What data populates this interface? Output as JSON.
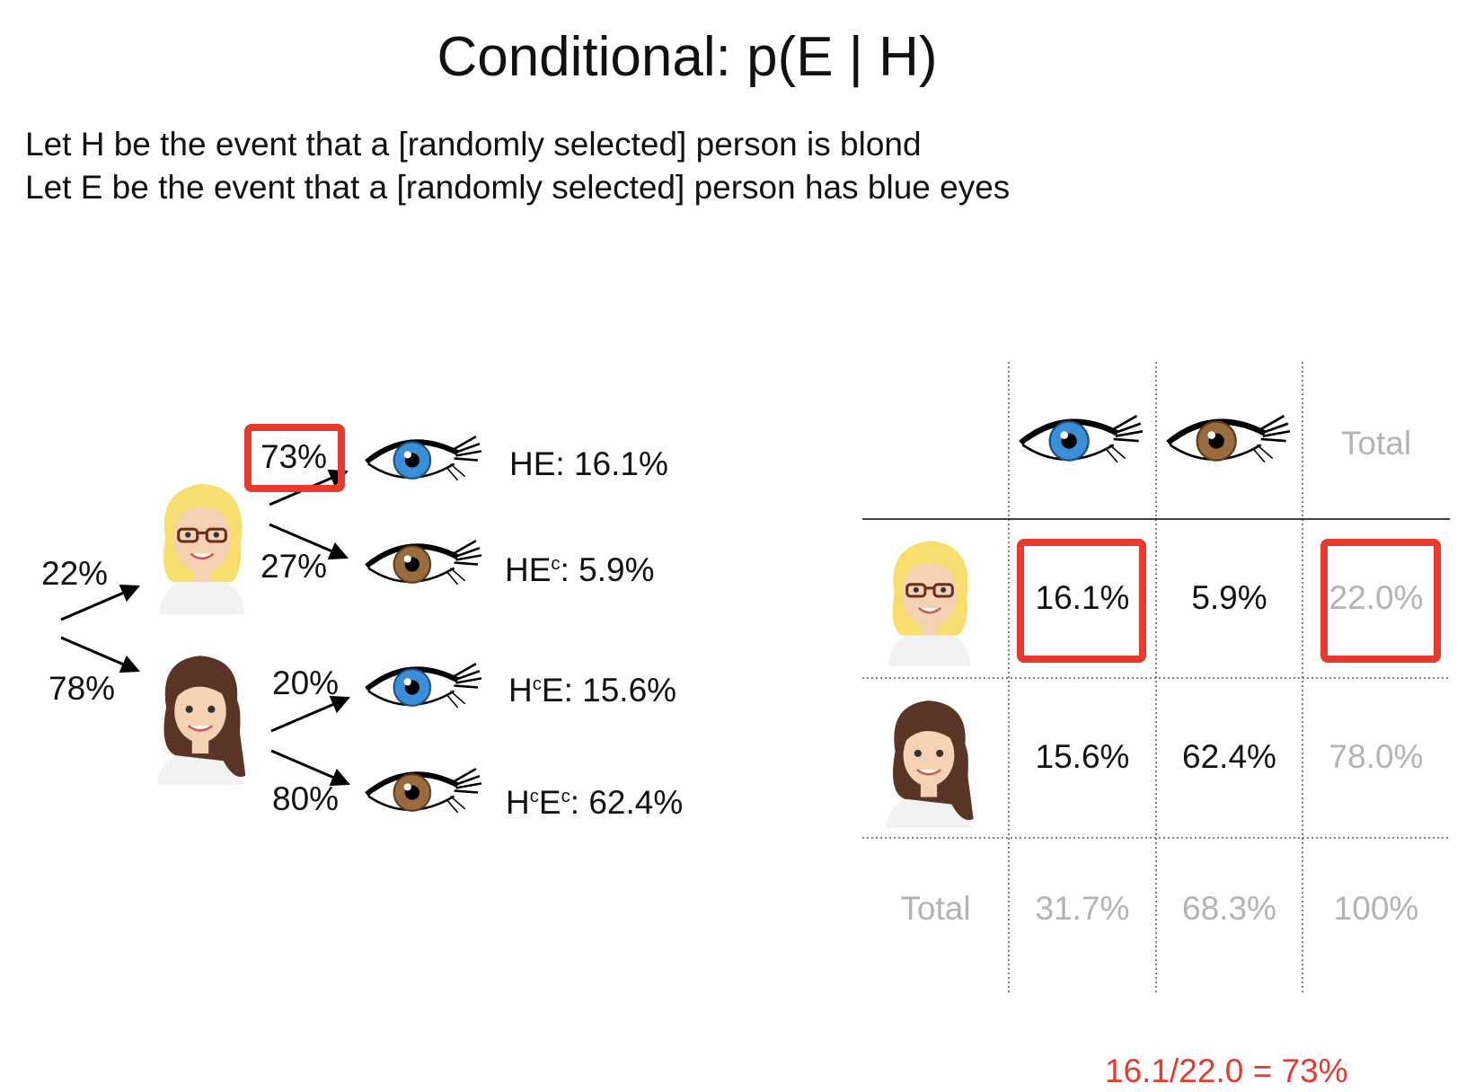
{
  "title": "Conditional: p(E | H)",
  "definitions": [
    "Let H be the event that a [randomly selected] person is blond",
    "Let E be the event that a [randomly selected] person has blue eyes"
  ],
  "tree": {
    "root_branches": [
      {
        "label": "22%",
        "person": "blond-woman-icon"
      },
      {
        "label": "78%",
        "person": "brunette-woman-icon"
      }
    ],
    "leaf_branches": [
      {
        "label": "73%",
        "eye": "blue-eye-icon",
        "outcome": {
          "base": "HE: 16.1%"
        }
      },
      {
        "label": "27%",
        "eye": "brown-eye-icon",
        "outcome": {
          "p1": "HE",
          "s1": "c",
          "p2": ": 5.9%"
        }
      },
      {
        "label": "20%",
        "eye": "blue-eye-icon",
        "outcome": {
          "p1": "H",
          "s1": "c",
          "p2": "E: 15.6%"
        }
      },
      {
        "label": "80%",
        "eye": "brown-eye-icon",
        "outcome": {
          "p1": "H",
          "s1": "c",
          "p2": "E",
          "s2": "c",
          "p3": ": 62.4%"
        }
      }
    ]
  },
  "table": {
    "header_total": "Total",
    "rows": [
      {
        "person": "blond-woman-icon",
        "blue": "16.1%",
        "brown": "5.9%",
        "total": "22.0%"
      },
      {
        "person": "brunette-woman-icon",
        "blue": "15.6%",
        "brown": "62.4%",
        "total": "78.0%"
      }
    ],
    "total_row": {
      "label": "Total",
      "blue": "31.7%",
      "brown": "68.3%",
      "total": "100%"
    }
  },
  "formula": "16.1/22.0 = 73%",
  "colors": {
    "highlight": "#e83a2c",
    "blue_iris": "#3b8fd9",
    "brown_iris": "#9a6b3e",
    "blond_hair": "#f7de6e",
    "brunette_hair": "#5a3526",
    "muted_text": "#b3b3b3"
  }
}
